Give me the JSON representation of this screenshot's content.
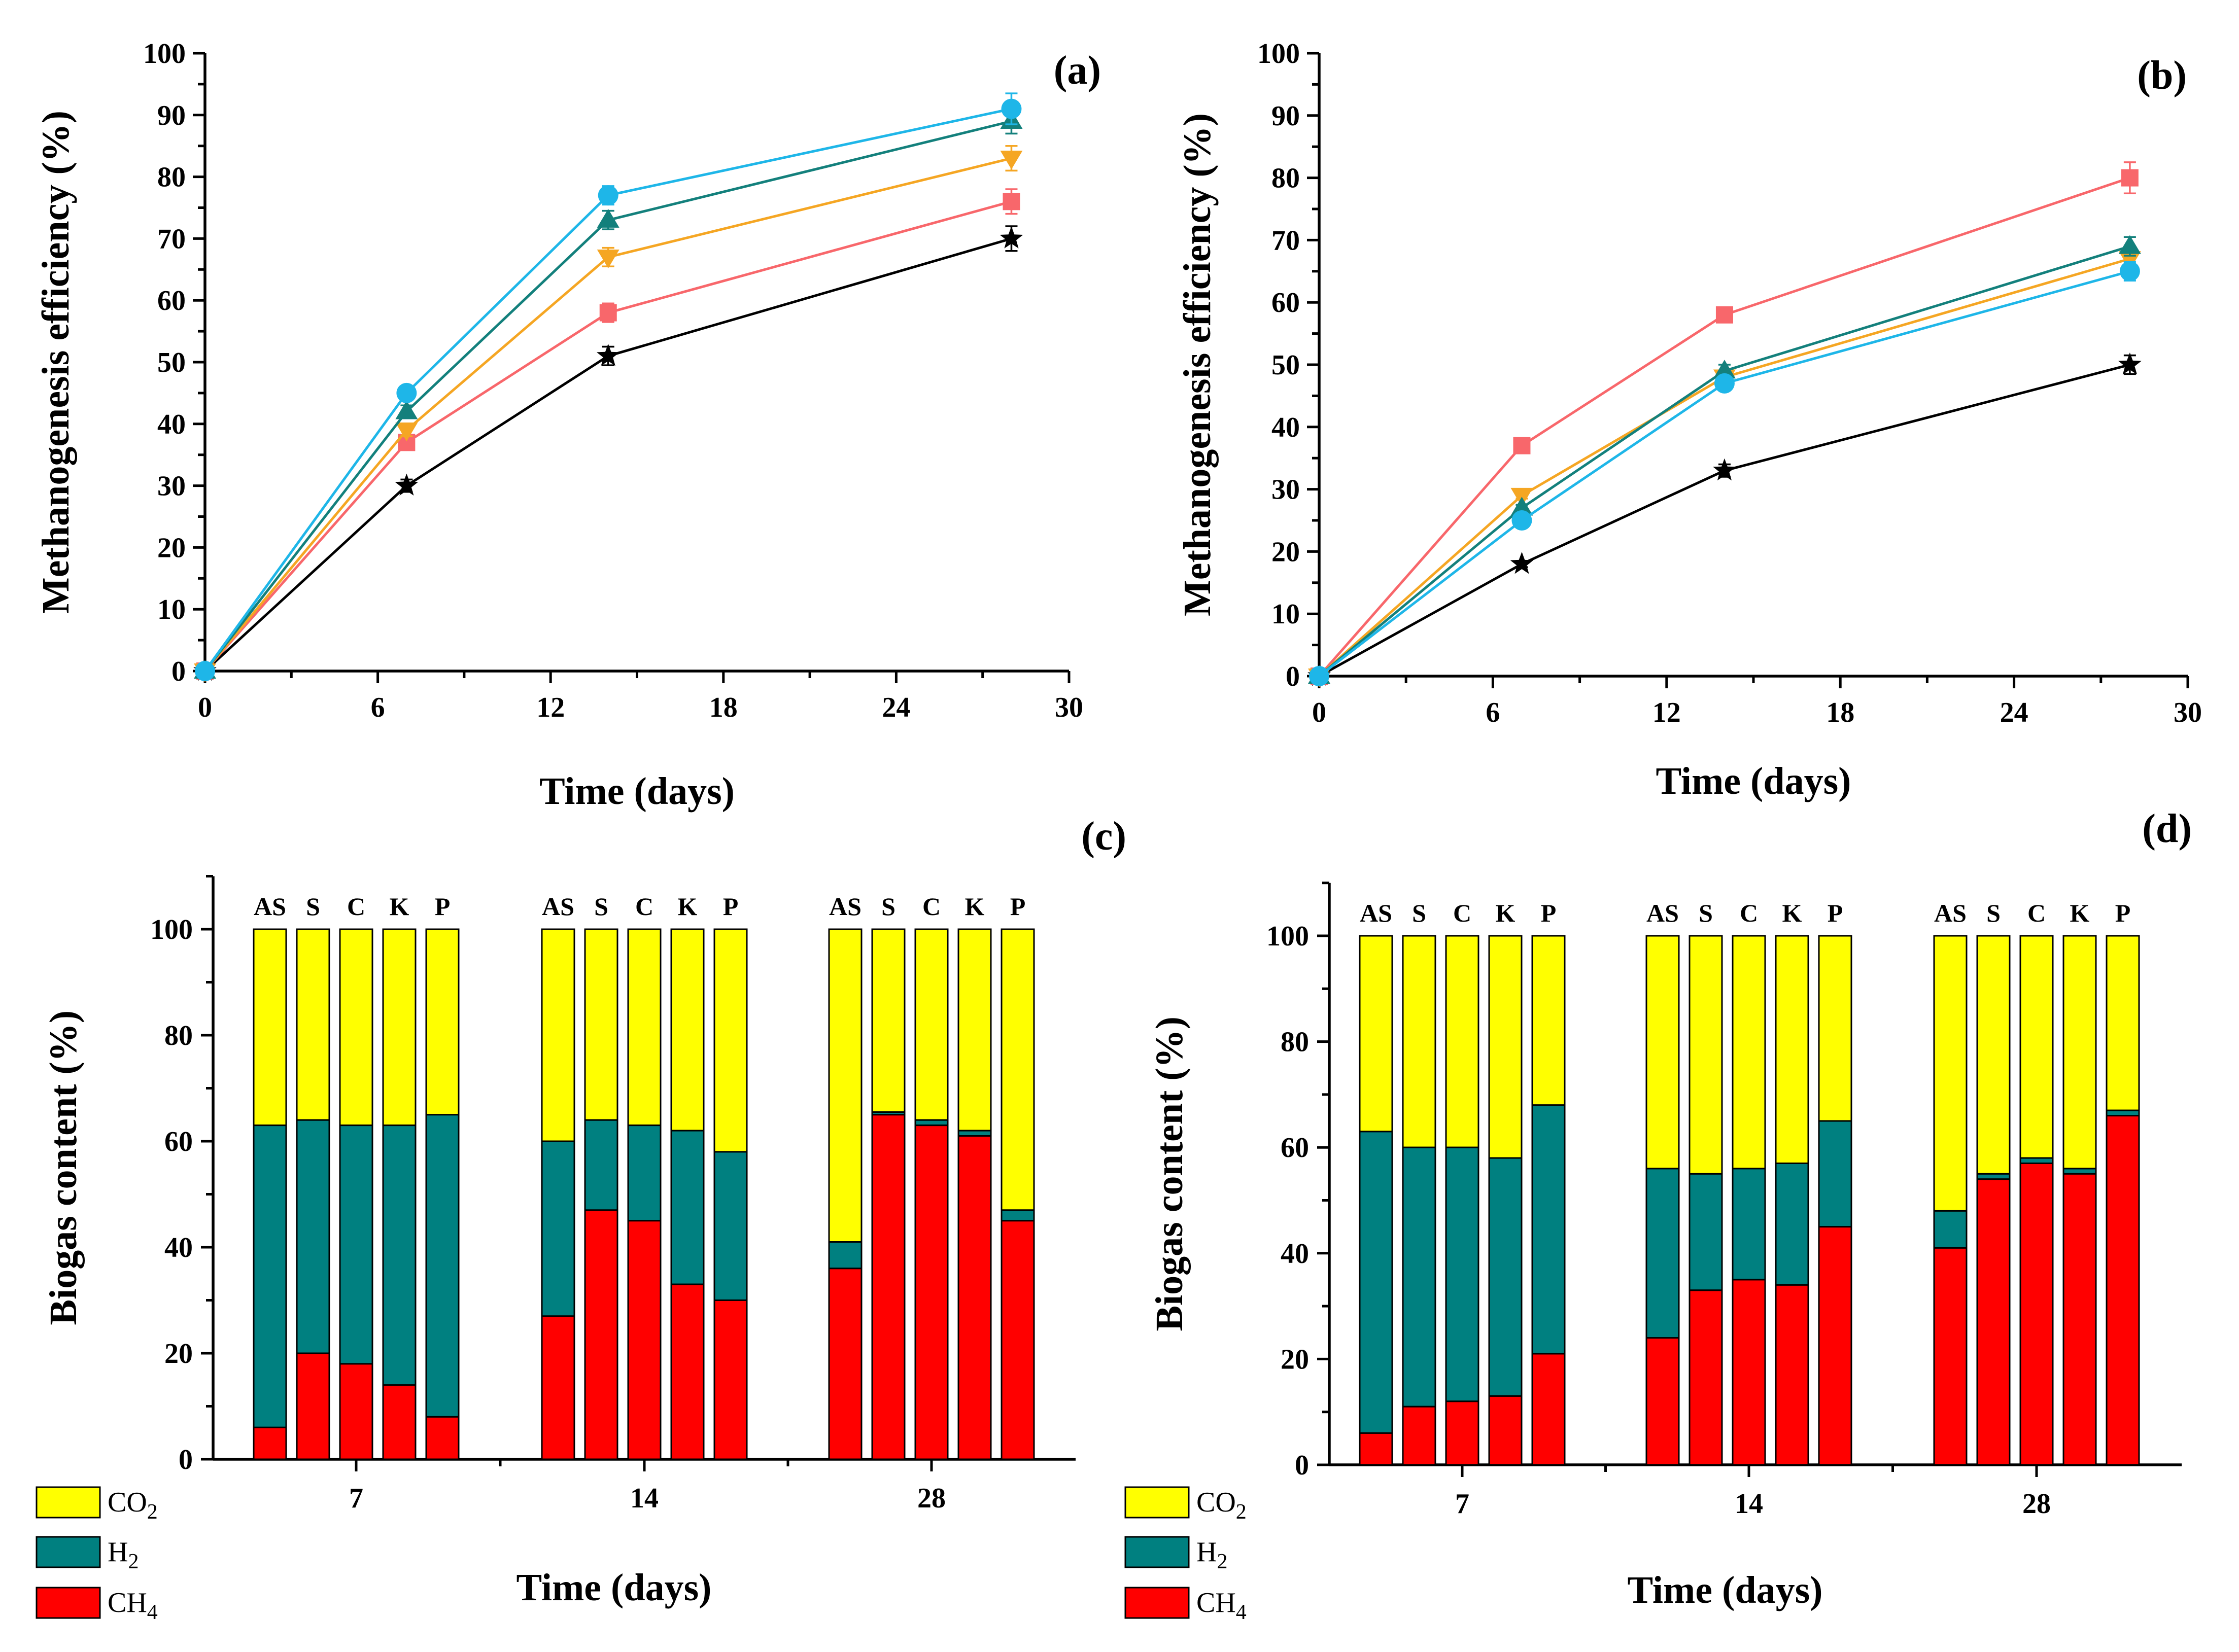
{
  "line_panels": [
    {
      "panel_label": "(a)",
      "xlabel": "Time (days)",
      "ylabel": "Methanogenesis efficiency (%)",
      "xlim": [
        0,
        30
      ],
      "ylim": [
        0,
        100
      ],
      "xticks": [
        "0",
        "6",
        "12",
        "18",
        "24",
        "30"
      ],
      "yticks": [
        "0",
        "10",
        "20",
        "30",
        "40",
        "50",
        "60",
        "70",
        "80",
        "90",
        "100"
      ],
      "x": [
        0,
        7,
        14,
        28
      ],
      "series": [
        {
          "marker": "star",
          "color": "#000000",
          "values": [
            0,
            30,
            51,
            70
          ],
          "errors": [
            0,
            1,
            1.5,
            2
          ]
        },
        {
          "marker": "square",
          "color": "#f8676b",
          "values": [
            0,
            37,
            58,
            76
          ],
          "errors": [
            0,
            1,
            1.5,
            2
          ]
        },
        {
          "marker": "triangle-down",
          "color": "#f5a623",
          "values": [
            0,
            39,
            67,
            83
          ],
          "errors": [
            0,
            1,
            1.5,
            2
          ]
        },
        {
          "marker": "triangle-up",
          "color": "#13807c",
          "values": [
            0,
            42,
            73,
            89
          ],
          "errors": [
            0,
            1,
            1.5,
            2
          ]
        },
        {
          "marker": "circle",
          "color": "#1eb6e8",
          "values": [
            0,
            45,
            77,
            91
          ],
          "errors": [
            0,
            1,
            1.5,
            2.5
          ]
        }
      ]
    },
    {
      "panel_label": "(b)",
      "xlabel": "Time (days)",
      "ylabel": "Methanogenesis efficiency (%)",
      "xlim": [
        0,
        30
      ],
      "ylim": [
        0,
        100
      ],
      "xticks": [
        "0",
        "6",
        "12",
        "18",
        "24",
        "30"
      ],
      "yticks": [
        "0",
        "10",
        "20",
        "30",
        "40",
        "50",
        "60",
        "70",
        "80",
        "90",
        "100"
      ],
      "x": [
        0,
        7,
        14,
        28
      ],
      "series": [
        {
          "marker": "star",
          "color": "#000000",
          "values": [
            0,
            18,
            33,
            50
          ],
          "errors": [
            0,
            0.5,
            1,
            1.5
          ]
        },
        {
          "marker": "square",
          "color": "#f8676b",
          "values": [
            0,
            37,
            58,
            80
          ],
          "errors": [
            0,
            0.5,
            1,
            2.5
          ]
        },
        {
          "marker": "triangle-down",
          "color": "#f5a623",
          "values": [
            0,
            29,
            48,
            67
          ],
          "errors": [
            0,
            0.5,
            1,
            1.5
          ]
        },
        {
          "marker": "triangle-up",
          "color": "#13807c",
          "values": [
            0,
            27,
            49,
            69
          ],
          "errors": [
            0,
            0.5,
            1,
            1.5
          ]
        },
        {
          "marker": "circle",
          "color": "#1eb6e8",
          "values": [
            0,
            25,
            47,
            65
          ],
          "errors": [
            0,
            0.5,
            1,
            1.5
          ]
        }
      ]
    }
  ],
  "bar_panels": [
    {
      "panel_label": "(c)",
      "xlabel": "Time (days)",
      "ylabel": "Biogas content (%)",
      "ylim": [
        0,
        110
      ],
      "yticks": [
        "0",
        "20",
        "40",
        "60",
        "80",
        "100"
      ],
      "groups": [
        "7",
        "14",
        "28"
      ],
      "bar_labels": [
        "AS",
        "S",
        "C",
        "K",
        "P"
      ],
      "components": [
        "CH4",
        "H2",
        "CO2"
      ],
      "colors": {
        "CH4": "#ff0000",
        "H2": "#008080",
        "CO2": "#ffff00"
      },
      "ch4": [
        [
          6,
          20,
          18,
          14,
          8
        ],
        [
          27,
          47,
          45,
          33,
          30
        ],
        [
          36,
          65,
          63,
          61,
          45
        ]
      ],
      "ch4_h2": [
        [
          63,
          64,
          63,
          63,
          65
        ],
        [
          60,
          64,
          63,
          62,
          58
        ],
        [
          41,
          65.5,
          64,
          62,
          47
        ]
      ]
    },
    {
      "panel_label": "(d)",
      "xlabel": "Time (days)",
      "ylabel": "Biogas content (%)",
      "ylim": [
        0,
        110
      ],
      "yticks": [
        "0",
        "20",
        "40",
        "60",
        "80",
        "100"
      ],
      "groups": [
        "7",
        "14",
        "28"
      ],
      "bar_labels": [
        "AS",
        "S",
        "C",
        "K",
        "P"
      ],
      "components": [
        "CH4",
        "H2",
        "CO2"
      ],
      "colors": {
        "CH4": "#ff0000",
        "H2": "#008080",
        "CO2": "#ffff00"
      },
      "ch4": [
        [
          6,
          11,
          12,
          13,
          21
        ],
        [
          24,
          33,
          35,
          34,
          45
        ],
        [
          41,
          54,
          57,
          55,
          66
        ]
      ],
      "ch4_h2": [
        [
          63,
          60,
          60,
          58,
          68
        ],
        [
          56,
          55,
          56,
          57,
          65
        ],
        [
          48,
          55,
          58,
          56,
          67
        ]
      ]
    }
  ],
  "legend": {
    "co2": {
      "main": "CO",
      "sub": "2"
    },
    "h2": {
      "main": "H",
      "sub": "2"
    },
    "ch4": {
      "main": "CH",
      "sub": "4"
    }
  },
  "chart_data": [
    {
      "type": "line",
      "panel": "(a)",
      "xlabel": "Time (days)",
      "ylabel": "Methanogenesis efficiency (%)",
      "xlim": [
        0,
        30
      ],
      "ylim": [
        0,
        100
      ],
      "x": [
        0,
        7,
        14,
        28
      ],
      "series": [
        {
          "name": "star (black)",
          "values": [
            0,
            30,
            51,
            70
          ]
        },
        {
          "name": "square (pink)",
          "values": [
            0,
            37,
            58,
            76
          ]
        },
        {
          "name": "triangle-down (orange)",
          "values": [
            0,
            39,
            67,
            83
          ]
        },
        {
          "name": "triangle-up (teal)",
          "values": [
            0,
            42,
            73,
            89
          ]
        },
        {
          "name": "circle (light blue)",
          "values": [
            0,
            45,
            77,
            91
          ]
        }
      ]
    },
    {
      "type": "line",
      "panel": "(b)",
      "xlabel": "Time (days)",
      "ylabel": "Methanogenesis efficiency (%)",
      "xlim": [
        0,
        30
      ],
      "ylim": [
        0,
        100
      ],
      "x": [
        0,
        7,
        14,
        28
      ],
      "series": [
        {
          "name": "star (black)",
          "values": [
            0,
            18,
            33,
            50
          ]
        },
        {
          "name": "square (pink)",
          "values": [
            0,
            37,
            58,
            80
          ]
        },
        {
          "name": "triangle-down (orange)",
          "values": [
            0,
            29,
            48,
            67
          ]
        },
        {
          "name": "triangle-up (teal)",
          "values": [
            0,
            27,
            49,
            69
          ]
        },
        {
          "name": "circle (light blue)",
          "values": [
            0,
            25,
            47,
            65
          ]
        }
      ]
    },
    {
      "type": "bar",
      "stacked": true,
      "panel": "(c)",
      "xlabel": "Time (days)",
      "ylabel": "Biogas content (%)",
      "ylim": [
        0,
        110
      ],
      "categories": [
        "7",
        "14",
        "28"
      ],
      "bars": [
        "AS",
        "S",
        "C",
        "K",
        "P"
      ],
      "series": [
        {
          "name": "CH4",
          "values": [
            [
              6,
              20,
              18,
              14,
              8
            ],
            [
              27,
              47,
              45,
              33,
              30
            ],
            [
              36,
              65,
              63,
              61,
              45
            ]
          ]
        },
        {
          "name": "H2",
          "values": [
            [
              57,
              44,
              45,
              49,
              57
            ],
            [
              33,
              17,
              18,
              29,
              28
            ],
            [
              5,
              0.5,
              1,
              1,
              2
            ]
          ]
        },
        {
          "name": "CO2",
          "values": [
            [
              37,
              36,
              37,
              37,
              35
            ],
            [
              40,
              36,
              37,
              38,
              42
            ],
            [
              59,
              34.5,
              36,
              38,
              53
            ]
          ]
        }
      ]
    },
    {
      "type": "bar",
      "stacked": true,
      "panel": "(d)",
      "xlabel": "Time (days)",
      "ylabel": "Biogas content (%)",
      "ylim": [
        0,
        110
      ],
      "categories": [
        "7",
        "14",
        "28"
      ],
      "bars": [
        "AS",
        "S",
        "C",
        "K",
        "P"
      ],
      "series": [
        {
          "name": "CH4",
          "values": [
            [
              6,
              11,
              12,
              13,
              21
            ],
            [
              24,
              33,
              35,
              34,
              45
            ],
            [
              41,
              54,
              57,
              55,
              66
            ]
          ]
        },
        {
          "name": "H2",
          "values": [
            [
              57,
              49,
              48,
              45,
              47
            ],
            [
              32,
              22,
              21,
              23,
              20
            ],
            [
              7,
              1,
              1,
              1,
              1
            ]
          ]
        },
        {
          "name": "CO2",
          "values": [
            [
              37,
              40,
              40,
              42,
              32
            ],
            [
              44,
              45,
              44,
              43,
              35
            ],
            [
              52,
              45,
              42,
              44,
              33
            ]
          ]
        }
      ]
    }
  ]
}
